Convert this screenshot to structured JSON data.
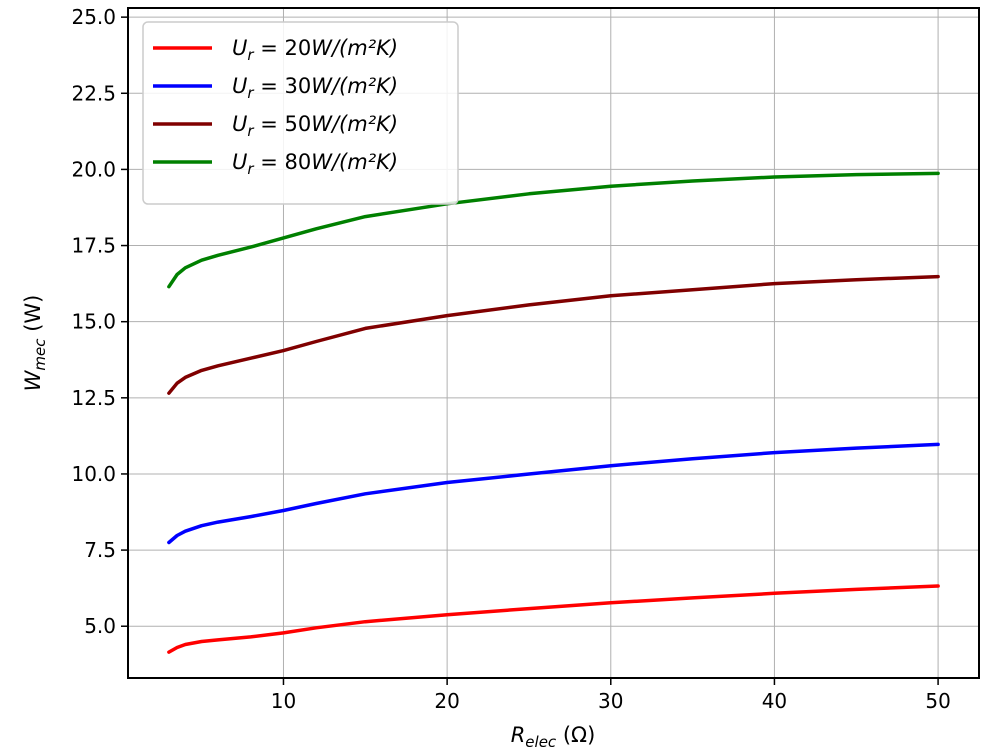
{
  "chart_data": {
    "type": "line",
    "title": "",
    "xlabel": {
      "main": "R",
      "sub": "elec",
      "unit": " (Ω)"
    },
    "ylabel": {
      "main": "W",
      "sub": "mec",
      "unit": " (W)"
    },
    "xlim": [
      0.5,
      52.5
    ],
    "ylim": [
      3.3,
      25.3
    ],
    "xticks": [
      10,
      20,
      30,
      40,
      50
    ],
    "xtick_labels": [
      "10",
      "20",
      "30",
      "40",
      "50"
    ],
    "yticks": [
      5.0,
      7.5,
      10.0,
      12.5,
      15.0,
      17.5,
      20.0,
      22.5,
      25.0
    ],
    "ytick_labels": [
      "5.0",
      "7.5",
      "10.0",
      "12.5",
      "15.0",
      "17.5",
      "20.0",
      "22.5",
      "25.0"
    ],
    "grid": true,
    "legend_position": "top-left",
    "x": [
      3,
      3.5,
      4,
      5,
      6,
      8,
      10,
      12,
      15,
      20,
      25,
      30,
      35,
      40,
      45,
      50
    ],
    "series": [
      {
        "name": {
          "main": "U",
          "sub": "r",
          "text": " = 20",
          "unit": "W/(m²K)"
        },
        "color": "#ff0000",
        "values": [
          4.15,
          4.3,
          4.4,
          4.5,
          4.55,
          4.65,
          4.78,
          4.95,
          5.15,
          5.38,
          5.58,
          5.77,
          5.93,
          6.08,
          6.21,
          6.32
        ]
      },
      {
        "name": {
          "main": "U",
          "sub": "r",
          "text": " = 30",
          "unit": "W/(m²K)"
        },
        "color": "#0000ff",
        "values": [
          7.75,
          7.98,
          8.12,
          8.3,
          8.42,
          8.6,
          8.8,
          9.03,
          9.35,
          9.72,
          10.0,
          10.27,
          10.5,
          10.7,
          10.85,
          10.97
        ]
      },
      {
        "name": {
          "main": "U",
          "sub": "r",
          "text": " = 50",
          "unit": "W/(m²K)"
        },
        "color": "#800000",
        "values": [
          12.65,
          12.98,
          13.17,
          13.4,
          13.55,
          13.8,
          14.05,
          14.35,
          14.78,
          15.2,
          15.55,
          15.85,
          16.05,
          16.25,
          16.38,
          16.48
        ]
      },
      {
        "name": {
          "main": "U",
          "sub": "r",
          "text": " = 80",
          "unit": "W/(m²K)"
        },
        "color": "#008000",
        "values": [
          16.15,
          16.55,
          16.77,
          17.02,
          17.18,
          17.45,
          17.75,
          18.05,
          18.45,
          18.87,
          19.2,
          19.45,
          19.62,
          19.75,
          19.83,
          19.87
        ]
      }
    ]
  }
}
